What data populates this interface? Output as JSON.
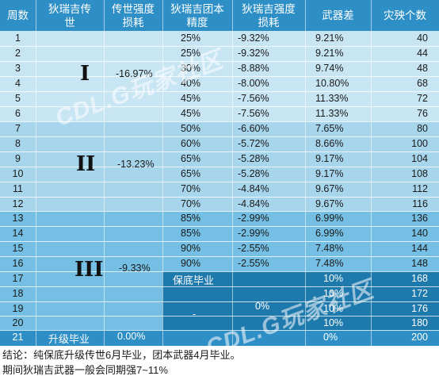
{
  "headers": [
    "周数",
    "狄瑞吉传\n世",
    "传世强度\n损耗",
    "狄瑞吉团本\n精度",
    "狄瑞吉强度\n损耗",
    "武器差",
    "灾殃个数"
  ],
  "rows": [
    {
      "week": "1",
      "precision": "25%",
      "loss": "-9.32%",
      "diff": "9.21%",
      "count": "40"
    },
    {
      "week": "2",
      "precision": "25%",
      "loss": "-9.32%",
      "diff": "9.21%",
      "count": "44"
    },
    {
      "week": "3",
      "precision": "30%",
      "loss": "-8.88%",
      "diff": "9.74%",
      "count": "48"
    },
    {
      "week": "4",
      "precision": "40%",
      "loss": "-8.00%",
      "diff": "10.80%",
      "count": "68"
    },
    {
      "week": "5",
      "precision": "45%",
      "loss": "-7.56%",
      "diff": "11.33%",
      "count": "72"
    },
    {
      "week": "6",
      "precision": "45%",
      "loss": "-7.56%",
      "diff": "11.33%",
      "count": "76"
    },
    {
      "week": "7",
      "precision": "50%",
      "loss": "-6.60%",
      "diff": "7.65%",
      "count": "80"
    },
    {
      "week": "8",
      "precision": "60%",
      "loss": "-5.72%",
      "diff": "8.66%",
      "count": "100"
    },
    {
      "week": "9",
      "precision": "65%",
      "loss": "-5.28%",
      "diff": "9.17%",
      "count": "104"
    },
    {
      "week": "10",
      "precision": "65%",
      "loss": "-5.28%",
      "diff": "9.17%",
      "count": "108"
    },
    {
      "week": "11",
      "precision": "70%",
      "loss": "-4.84%",
      "diff": "9.67%",
      "count": "112"
    },
    {
      "week": "12",
      "precision": "70%",
      "loss": "-4.84%",
      "diff": "9.67%",
      "count": "116"
    },
    {
      "week": "13",
      "precision": "85%",
      "loss": "-2.99%",
      "diff": "6.99%",
      "count": "136"
    },
    {
      "week": "14",
      "precision": "85%",
      "loss": "-2.99%",
      "diff": "6.99%",
      "count": "140"
    },
    {
      "week": "15",
      "precision": "90%",
      "loss": "-2.55%",
      "diff": "7.48%",
      "count": "144"
    },
    {
      "week": "16",
      "precision": "90%",
      "loss": "-2.55%",
      "diff": "7.48%",
      "count": "148"
    },
    {
      "week": "17",
      "precision": "",
      "loss": "",
      "diff": "10%",
      "count": "168"
    },
    {
      "week": "18",
      "precision": "",
      "loss": "",
      "diff": "10%",
      "count": "172"
    },
    {
      "week": "19",
      "precision": "",
      "loss": "",
      "diff": "10%",
      "count": "176"
    },
    {
      "week": "20",
      "precision": "",
      "loss": "",
      "diff": "10%",
      "count": "180"
    },
    {
      "week": "21",
      "precision": "",
      "loss": "",
      "diff": "0%",
      "count": "200"
    }
  ],
  "groups": [
    {
      "roman": "I",
      "loss": "-16.97%"
    },
    {
      "roman": "II",
      "loss": "-13.23%"
    },
    {
      "roman": "III",
      "loss": "-9.33%"
    }
  ],
  "merged": {
    "graduation_label": "保底毕业",
    "dash": "-",
    "zero_loss": "0%",
    "upgrade_label": "升级毕业",
    "upgrade_loss": "0.00%"
  },
  "watermark": "CDL.G玩家社区",
  "notes": [
    "结论：纯保底升级传世6月毕业，团本武器4月毕业。",
    "期间狄瑞吉武器一般会同期强7~11%"
  ]
}
